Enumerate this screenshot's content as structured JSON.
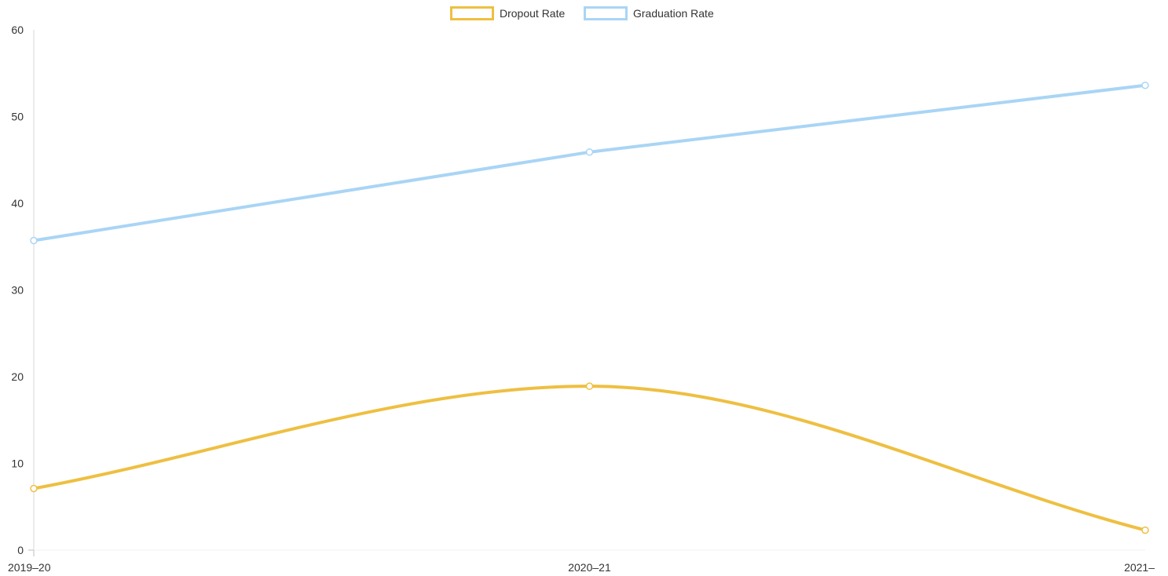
{
  "chart_data": {
    "type": "line",
    "title": "",
    "xlabel": "",
    "ylabel": "",
    "categories": [
      "2019–20",
      "2020–21",
      "2021–"
    ],
    "ylim": [
      0,
      60
    ],
    "yticks": [
      0,
      10,
      20,
      30,
      40,
      50,
      60
    ],
    "grid": false,
    "legend_placement": "top-center",
    "series": [
      {
        "name": "Dropout Rate",
        "color": "#EEBF41",
        "smooth": true,
        "values": [
          7.1,
          18.9,
          2.3
        ]
      },
      {
        "name": "Graduation Rate",
        "color": "#A9D5F5",
        "smooth": false,
        "values": [
          35.7,
          45.9,
          53.6
        ]
      }
    ]
  }
}
